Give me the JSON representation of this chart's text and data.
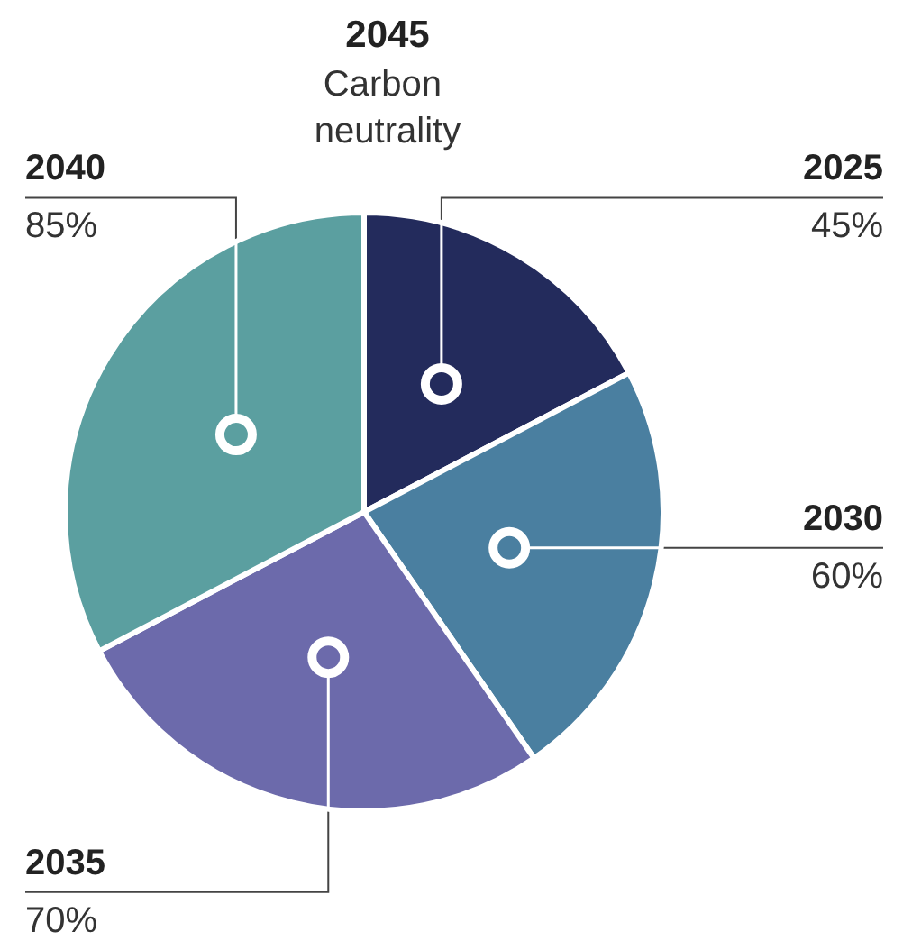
{
  "chart_data": {
    "type": "pie",
    "title": "2045",
    "subtitle": "Carbon neutrality",
    "categories": [
      "2025",
      "2030",
      "2035",
      "2040"
    ],
    "values": [
      45,
      60,
      70,
      85
    ],
    "value_labels": [
      "45%",
      "60%",
      "70%",
      "85%"
    ],
    "colors": [
      "#232b5c",
      "#4a7fa0",
      "#6c6aab",
      "#5b9fa0"
    ],
    "legend": false
  }
}
